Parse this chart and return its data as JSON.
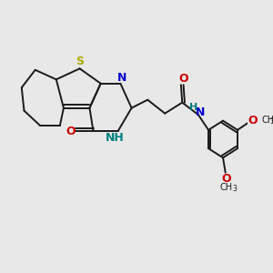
{
  "bg_color": "#e8e8e8",
  "bond_color": "#1a1a1a",
  "S_color": "#aaaa00",
  "N_color": "#0000cc",
  "O_color": "#cc0000",
  "NH_color": "#008080",
  "lw": 1.4,
  "fig_size": [
    3.0,
    3.0
  ],
  "dpi": 100,
  "xlim": [
    0,
    10
  ],
  "ylim": [
    0,
    10
  ]
}
